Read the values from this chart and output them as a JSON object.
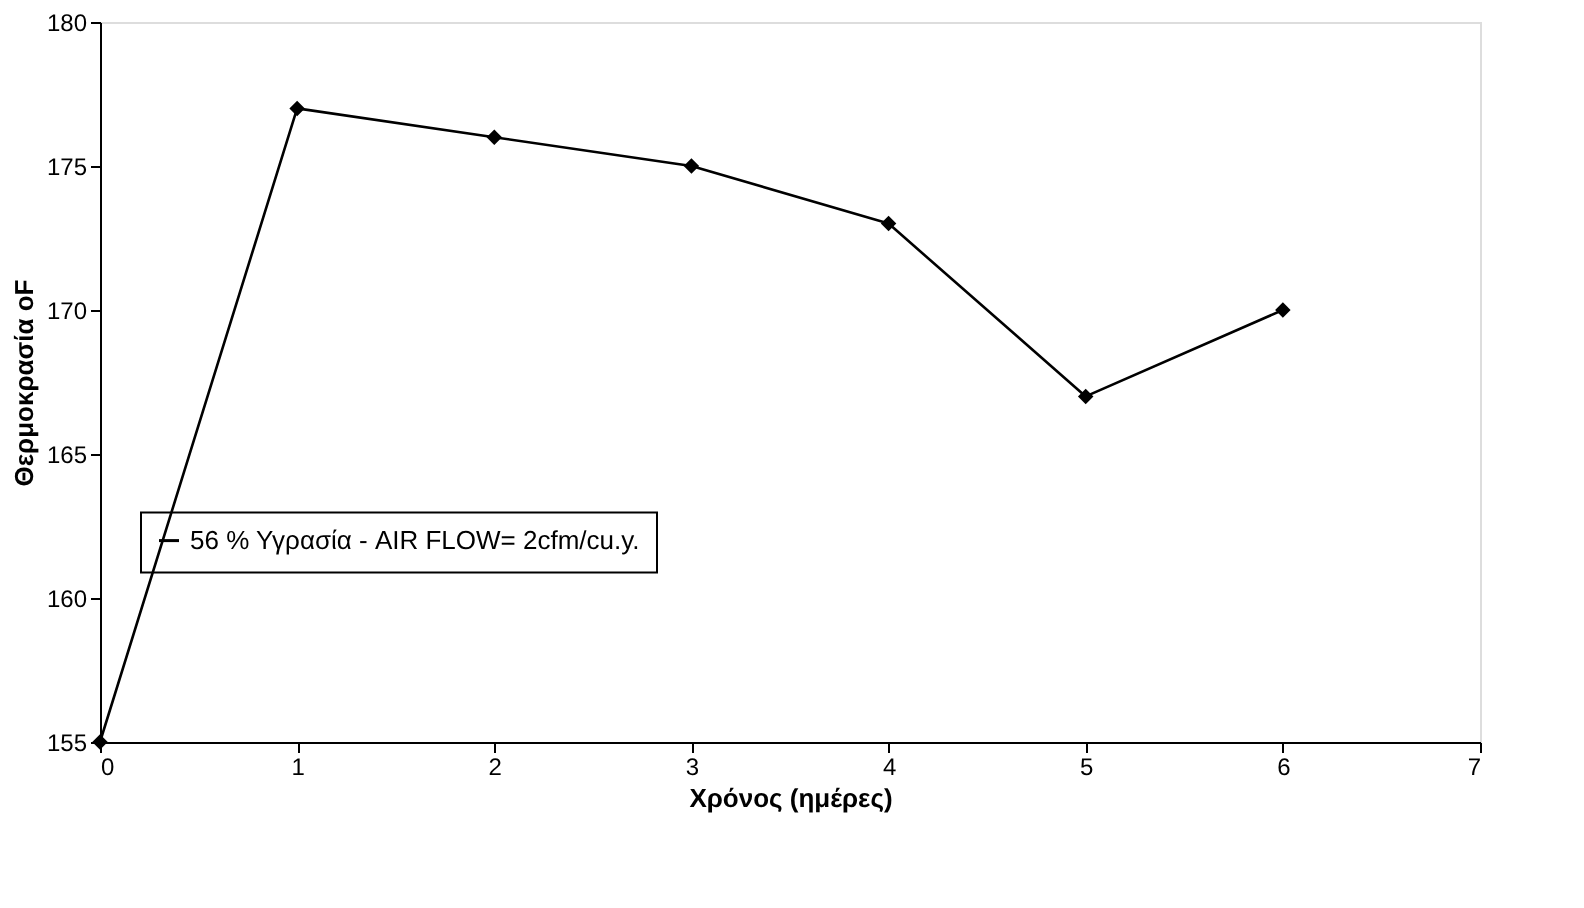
{
  "chart_data": {
    "type": "line",
    "xlabel": "Χρόνος (ημέρες)",
    "ylabel": "Θερμοκρασία oF",
    "x": [
      0,
      1,
      2,
      3,
      4,
      5,
      6
    ],
    "series": [
      {
        "name": "56 % Υγρασία - AIR FLOW= 2cfm/cu.y.",
        "color": "#000000",
        "values": [
          155,
          177,
          176,
          175,
          173,
          167,
          170
        ]
      }
    ],
    "xlim": [
      0,
      7
    ],
    "xticks": [
      0,
      1,
      2,
      3,
      4,
      5,
      6,
      7
    ],
    "ylim": [
      155,
      180
    ],
    "yticks": [
      155,
      160,
      165,
      170,
      175,
      180
    ],
    "grid": false,
    "legend": "left",
    "marker": "diamond",
    "line_style": "solid"
  }
}
